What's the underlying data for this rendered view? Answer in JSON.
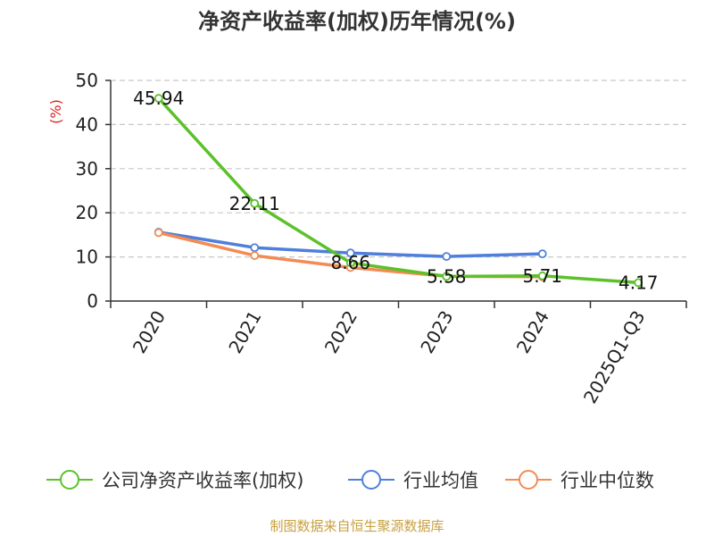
{
  "chart_data": {
    "type": "line",
    "title": "净资产收益率(加权)历年情况(%)",
    "ylabel": "(%)",
    "categories": [
      "2020",
      "2021",
      "2022",
      "2023",
      "2024",
      "2025Q1-Q3"
    ],
    "ylim": [
      0,
      50
    ],
    "yticks": [
      0,
      10,
      20,
      30,
      40,
      50
    ],
    "grid": true,
    "legend_position": "bottom",
    "series": [
      {
        "name": "公司净资产收益率(加权)",
        "color": "#5cc12a",
        "values": [
          45.94,
          22.11,
          8.66,
          5.58,
          5.71,
          4.17
        ],
        "labels": [
          "45.94",
          "22.11",
          "8.66",
          "5.58",
          "5.71",
          "4.17"
        ]
      },
      {
        "name": "行业均值",
        "color": "#4f7fdc",
        "values": [
          15.6,
          12.1,
          10.9,
          10.1,
          10.7,
          null
        ],
        "labels": []
      },
      {
        "name": "行业中位数",
        "color": "#f28b54",
        "values": [
          15.5,
          10.3,
          7.6,
          5.6,
          5.5,
          null
        ],
        "labels": []
      }
    ]
  },
  "footer": {
    "source": "制图数据来自恒生聚源数据库"
  }
}
